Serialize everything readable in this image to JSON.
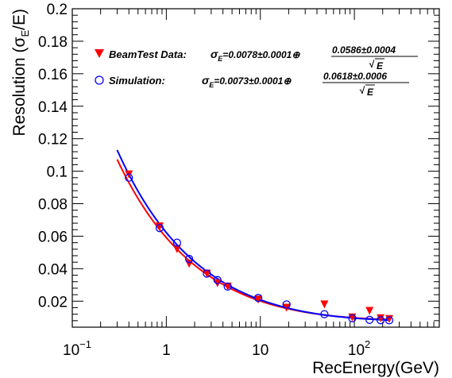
{
  "chart_data": {
    "type": "scatter",
    "xlabel": "RecEnergy(GeV)",
    "ylabel": "Resolution (σ",
    "ylabel_sub": "E",
    "ylabel_end": "/E)",
    "xscale": "log",
    "xlim": [
      0.1,
      800
    ],
    "ylim": [
      0.004,
      0.2
    ],
    "grid": false,
    "legend_position": "top",
    "x_tick_labels": [
      {
        "value": 0.1,
        "base": "10",
        "exp": "−1"
      },
      {
        "value": 1,
        "base": "1",
        "exp": ""
      },
      {
        "value": 10,
        "base": "10",
        "exp": ""
      },
      {
        "value": 100,
        "base": "10",
        "exp": "2"
      }
    ],
    "y_tick_labels": [
      "0.02",
      "0.04",
      "0.06",
      "0.08",
      "0.1",
      "0.12",
      "0.14",
      "0.16",
      "0.18",
      "0.2"
    ],
    "series": [
      {
        "name": "BeamTest Data:",
        "color": "#ff0000",
        "marker": "triangle-down",
        "formula": {
          "sigma": "σ",
          "sub": "E",
          "const": "=0.0078±0.0001⊕",
          "numerator": "0.0586±0.0004",
          "sqrt": "√",
          "denominator": "E"
        },
        "fit": {
          "a": 0.0078,
          "b": 0.0586,
          "x_range": [
            0.3,
            240
          ]
        },
        "points": [
          {
            "x": 0.4,
            "y": 0.098
          },
          {
            "x": 0.85,
            "y": 0.066
          },
          {
            "x": 1.3,
            "y": 0.052
          },
          {
            "x": 1.75,
            "y": 0.043
          },
          {
            "x": 2.7,
            "y": 0.037
          },
          {
            "x": 3.5,
            "y": 0.031
          },
          {
            "x": 4.5,
            "y": 0.029
          },
          {
            "x": 9.5,
            "y": 0.021
          },
          {
            "x": 19,
            "y": 0.016
          },
          {
            "x": 48,
            "y": 0.018
          },
          {
            "x": 95,
            "y": 0.01
          },
          {
            "x": 145,
            "y": 0.014
          },
          {
            "x": 190,
            "y": 0.0095
          },
          {
            "x": 235,
            "y": 0.009
          }
        ]
      },
      {
        "name": "Simulation:",
        "color": "#0000ff",
        "marker": "open-circle",
        "formula": {
          "sigma": "σ",
          "sub": "E",
          "const": "=0.0073±0.0001⊕",
          "numerator": "0.0618±0.0006",
          "sqrt": "√",
          "denominator": "E"
        },
        "fit": {
          "a": 0.0073,
          "b": 0.0618,
          "x_range": [
            0.3,
            240
          ]
        },
        "points": [
          {
            "x": 0.4,
            "y": 0.096
          },
          {
            "x": 0.85,
            "y": 0.065
          },
          {
            "x": 1.3,
            "y": 0.056
          },
          {
            "x": 1.75,
            "y": 0.046
          },
          {
            "x": 2.7,
            "y": 0.037
          },
          {
            "x": 3.5,
            "y": 0.033
          },
          {
            "x": 4.5,
            "y": 0.029
          },
          {
            "x": 9.5,
            "y": 0.022
          },
          {
            "x": 19,
            "y": 0.018
          },
          {
            "x": 48,
            "y": 0.012
          },
          {
            "x": 95,
            "y": 0.0095
          },
          {
            "x": 145,
            "y": 0.0085
          },
          {
            "x": 190,
            "y": 0.0083
          },
          {
            "x": 235,
            "y": 0.0082
          }
        ]
      }
    ]
  }
}
